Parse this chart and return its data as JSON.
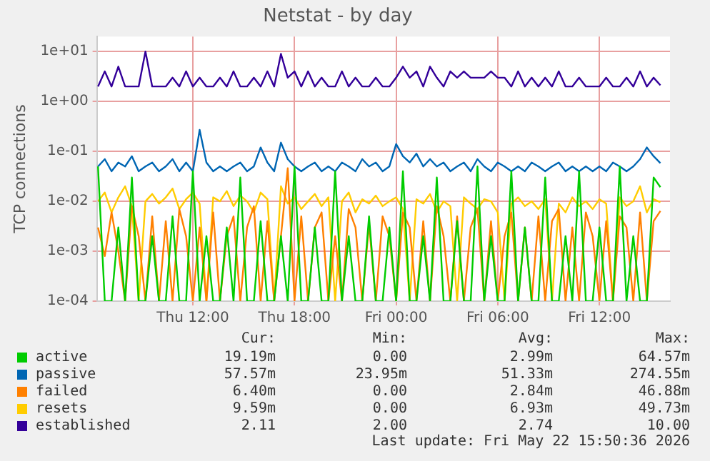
{
  "chart_data": {
    "type": "line",
    "title": "Netstat - by day",
    "ylabel": "TCP connections",
    "log": true,
    "grid": true,
    "legend": "bottom",
    "marker": "none",
    "line_style": "solid",
    "xlim": [
      "2026-05-21T06:20",
      "2026-05-22T16:10"
    ],
    "xticks": [
      {
        "value": "2026-05-21T12:00",
        "label": "Thu 12:00"
      },
      {
        "value": "2026-05-21T18:00",
        "label": "Thu 18:00"
      },
      {
        "value": "2026-05-22T00:00",
        "label": "Fri 00:00"
      },
      {
        "value": "2026-05-22T06:00",
        "label": "Fri 06:00"
      },
      {
        "value": "2026-05-22T12:00",
        "label": "Fri 12:00"
      }
    ],
    "ylim": [
      0.0001,
      20
    ],
    "yticks": [
      {
        "value": 0.0001,
        "label": "1e-04"
      },
      {
        "value": 0.001,
        "label": "1e-03"
      },
      {
        "value": 0.01,
        "label": "1e-02"
      },
      {
        "value": 0.1,
        "label": "1e-01"
      },
      {
        "value": 1,
        "label": "1e+00"
      },
      {
        "value": 10,
        "label": "1e+01"
      }
    ],
    "x": [
      "2026-05-21T06:24",
      "2026-05-21T06:48",
      "2026-05-21T07:12",
      "2026-05-21T07:36",
      "2026-05-21T08:00",
      "2026-05-21T08:24",
      "2026-05-21T08:48",
      "2026-05-21T09:12",
      "2026-05-21T09:36",
      "2026-05-21T10:00",
      "2026-05-21T10:24",
      "2026-05-21T10:48",
      "2026-05-21T11:12",
      "2026-05-21T11:36",
      "2026-05-21T12:00",
      "2026-05-21T12:24",
      "2026-05-21T12:48",
      "2026-05-21T13:12",
      "2026-05-21T13:36",
      "2026-05-21T14:00",
      "2026-05-21T14:24",
      "2026-05-21T14:48",
      "2026-05-21T15:12",
      "2026-05-21T15:36",
      "2026-05-21T16:00",
      "2026-05-21T16:24",
      "2026-05-21T16:48",
      "2026-05-21T17:12",
      "2026-05-21T17:36",
      "2026-05-21T18:00",
      "2026-05-21T18:24",
      "2026-05-21T18:48",
      "2026-05-21T19:12",
      "2026-05-21T19:36",
      "2026-05-21T20:00",
      "2026-05-21T20:24",
      "2026-05-21T20:48",
      "2026-05-21T21:12",
      "2026-05-21T21:36",
      "2026-05-21T22:00",
      "2026-05-21T22:24",
      "2026-05-21T22:48",
      "2026-05-21T23:12",
      "2026-05-21T23:36",
      "2026-05-22T00:00",
      "2026-05-22T00:24",
      "2026-05-22T00:48",
      "2026-05-22T01:12",
      "2026-05-22T01:36",
      "2026-05-22T02:00",
      "2026-05-22T02:24",
      "2026-05-22T02:48",
      "2026-05-22T03:12",
      "2026-05-22T03:36",
      "2026-05-22T04:00",
      "2026-05-22T04:24",
      "2026-05-22T04:48",
      "2026-05-22T05:12",
      "2026-05-22T05:36",
      "2026-05-22T06:00",
      "2026-05-22T06:24",
      "2026-05-22T06:48",
      "2026-05-22T07:12",
      "2026-05-22T07:36",
      "2026-05-22T08:00",
      "2026-05-22T08:24",
      "2026-05-22T08:48",
      "2026-05-22T09:12",
      "2026-05-22T09:36",
      "2026-05-22T10:00",
      "2026-05-22T10:24",
      "2026-05-22T10:48",
      "2026-05-22T11:12",
      "2026-05-22T11:36",
      "2026-05-22T12:00",
      "2026-05-22T12:24",
      "2026-05-22T12:48",
      "2026-05-22T13:12",
      "2026-05-22T13:36",
      "2026-05-22T14:00",
      "2026-05-22T14:24",
      "2026-05-22T14:48",
      "2026-05-22T15:12",
      "2026-05-22T15:36"
    ],
    "series": [
      {
        "name": "active",
        "color": "#00cc00",
        "values": [
          0.05,
          0.0001,
          0.0001,
          0.003,
          0.0001,
          0.03,
          0.0001,
          0.0001,
          0.002,
          0.0001,
          0.0001,
          0.005,
          0.0001,
          0.0001,
          0.04,
          0.0001,
          0.002,
          0.0001,
          0.0001,
          0.003,
          0.0001,
          0.03,
          0.0001,
          0.0001,
          0.004,
          0.0001,
          0.0001,
          0.002,
          0.0001,
          0.05,
          0.0001,
          0.0001,
          0.003,
          0.0001,
          0.0001,
          0.04,
          0.0001,
          0.002,
          0.0001,
          0.0001,
          0.005,
          0.0001,
          0.0001,
          0.003,
          0.0001,
          0.04,
          0.0001,
          0.0001,
          0.002,
          0.0001,
          0.03,
          0.0001,
          0.0001,
          0.004,
          0.0001,
          0.0001,
          0.05,
          0.0001,
          0.002,
          0.0001,
          0.0001,
          0.04,
          0.0001,
          0.003,
          0.0001,
          0.0001,
          0.03,
          0.0001,
          0.0001,
          0.002,
          0.0001,
          0.04,
          0.0001,
          0.0001,
          0.003,
          0.0001,
          0.0001,
          0.05,
          0.0001,
          0.002,
          0.0001,
          0.0001,
          0.03,
          0.0192
        ]
      },
      {
        "name": "passive",
        "color": "#0066b3",
        "values": [
          0.05,
          0.07,
          0.04,
          0.06,
          0.05,
          0.08,
          0.04,
          0.05,
          0.06,
          0.04,
          0.05,
          0.07,
          0.04,
          0.06,
          0.04,
          0.27,
          0.06,
          0.04,
          0.05,
          0.04,
          0.05,
          0.06,
          0.04,
          0.05,
          0.12,
          0.06,
          0.04,
          0.15,
          0.07,
          0.05,
          0.04,
          0.05,
          0.06,
          0.04,
          0.05,
          0.04,
          0.06,
          0.05,
          0.04,
          0.07,
          0.05,
          0.06,
          0.04,
          0.05,
          0.14,
          0.08,
          0.06,
          0.09,
          0.05,
          0.07,
          0.05,
          0.06,
          0.04,
          0.05,
          0.06,
          0.04,
          0.07,
          0.05,
          0.04,
          0.06,
          0.05,
          0.04,
          0.05,
          0.04,
          0.06,
          0.05,
          0.04,
          0.05,
          0.06,
          0.04,
          0.05,
          0.04,
          0.05,
          0.04,
          0.05,
          0.04,
          0.06,
          0.05,
          0.04,
          0.05,
          0.07,
          0.12,
          0.08,
          0.058
        ]
      },
      {
        "name": "failed",
        "color": "#ff8000",
        "values": [
          0.003,
          0.0008,
          0.006,
          0.001,
          0.0001,
          0.008,
          0.002,
          0.0001,
          0.005,
          0.0001,
          0.004,
          0.0001,
          0.007,
          0.002,
          0.0001,
          0.003,
          0.0001,
          0.006,
          0.0001,
          0.002,
          0.005,
          0.0001,
          0.003,
          0.008,
          0.0001,
          0.004,
          0.0001,
          0.002,
          0.046,
          0.0001,
          0.005,
          0.0001,
          0.003,
          0.006,
          0.0001,
          0.002,
          0.0001,
          0.007,
          0.003,
          0.0001,
          0.0035,
          0.0001,
          0.005,
          0.002,
          0.0001,
          0.006,
          0.003,
          0.0001,
          0.004,
          0.0001,
          0.008,
          0.002,
          0.0001,
          0.005,
          0.0001,
          0.003,
          0.007,
          0.0001,
          0.004,
          0.0001,
          0.002,
          0.006,
          0.0001,
          0.003,
          0.0001,
          0.005,
          0.0001,
          0.004,
          0.007,
          0.0001,
          0.003,
          0.0001,
          0.006,
          0.002,
          0.0001,
          0.004,
          0.0001,
          0.005,
          0.003,
          0.0001,
          0.006,
          0.0001,
          0.004,
          0.0064
        ]
      },
      {
        "name": "resets",
        "color": "#ffcc00",
        "values": [
          0.01,
          0.015,
          0.006,
          0.012,
          0.02,
          0.008,
          0.0001,
          0.01,
          0.014,
          0.009,
          0.012,
          0.018,
          0.007,
          0.011,
          0.015,
          0.009,
          0.0001,
          0.012,
          0.01,
          0.016,
          0.008,
          0.013,
          0.01,
          0.006,
          0.015,
          0.011,
          0.0001,
          0.02,
          0.009,
          0.012,
          0.007,
          0.01,
          0.014,
          0.008,
          0.012,
          0.0001,
          0.01,
          0.015,
          0.006,
          0.011,
          0.009,
          0.013,
          0.008,
          0.01,
          0.012,
          0.007,
          0.0001,
          0.011,
          0.009,
          0.014,
          0.006,
          0.01,
          0.008,
          0.0001,
          0.012,
          0.009,
          0.007,
          0.011,
          0.01,
          0.006,
          0.0001,
          0.009,
          0.012,
          0.008,
          0.01,
          0.007,
          0.011,
          0.0001,
          0.009,
          0.006,
          0.012,
          0.008,
          0.01,
          0.007,
          0.011,
          0.009,
          0.0001,
          0.012,
          0.008,
          0.01,
          0.02,
          0.006,
          0.011,
          0.0096
        ]
      },
      {
        "name": "established",
        "color": "#330099",
        "values": [
          2,
          4,
          2,
          5,
          2,
          2,
          2,
          10,
          2,
          2,
          2,
          3,
          2,
          4,
          2,
          3,
          2,
          2,
          3,
          2,
          4,
          2,
          2,
          3,
          2,
          4,
          2,
          9,
          3,
          4,
          2,
          4,
          2,
          3,
          2,
          2,
          4,
          2,
          3,
          2,
          2,
          3,
          2,
          2,
          3,
          5,
          3,
          4,
          2,
          5,
          3,
          2,
          4,
          3,
          4,
          3,
          3,
          3,
          4,
          3,
          3,
          2,
          4,
          2,
          3,
          2,
          3,
          2,
          4,
          2,
          2,
          3,
          2,
          2,
          2,
          3,
          2,
          2,
          3,
          2,
          4,
          2,
          3,
          2.11
        ]
      }
    ],
    "annotations": [
      "Cur:",
      "Min:",
      "Avg:",
      "Max:",
      "19.19m",
      "0.00",
      "2.99m",
      "64.57m",
      "57.57m",
      "23.95m",
      "51.33m",
      "274.55m",
      "6.40m",
      "0.00",
      "2.84m",
      "46.88m",
      "9.59m",
      "0.00",
      "6.93m",
      "49.73m",
      "2.11",
      "2.00",
      "2.74",
      "10.00",
      "Last update: Fri May 22 15:50:36 2026"
    ]
  }
}
